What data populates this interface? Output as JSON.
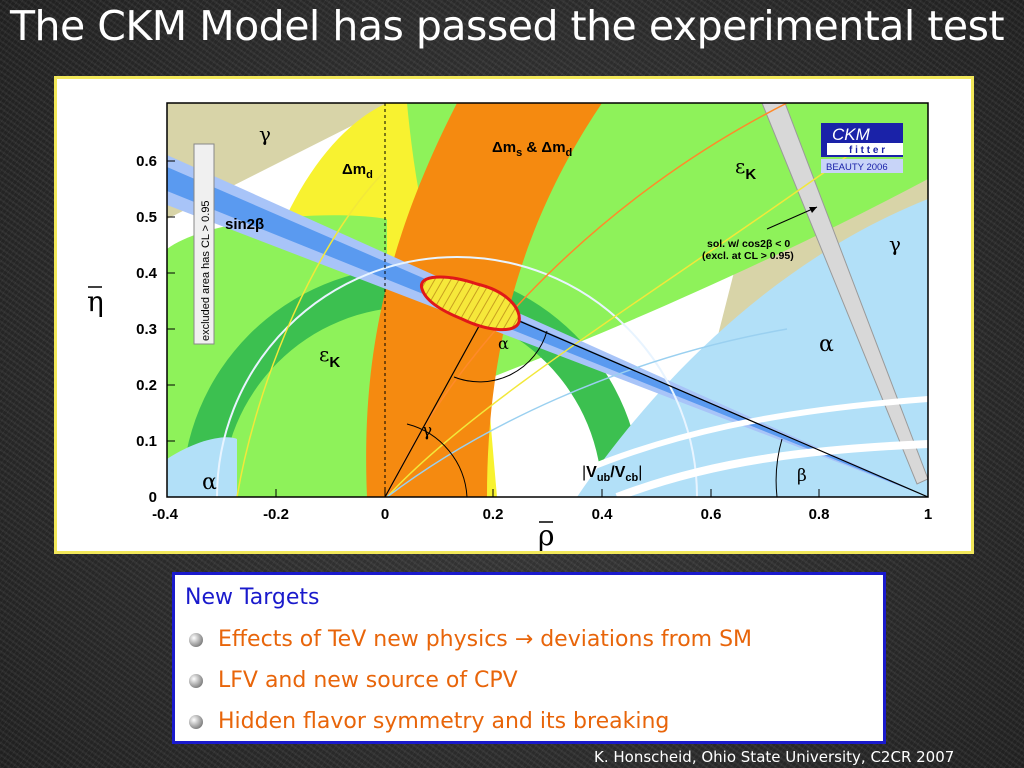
{
  "slide": {
    "title": "The CKM Model has passed the experimental test",
    "footer": "K. Honscheid, Ohio State University, C2CR 2007"
  },
  "figure": {
    "y_axis_symbol": "η",
    "x_axis_symbol": "ρ",
    "x_ticks": [
      "-0.4",
      "-0.2",
      "0",
      "0.2",
      "0.4",
      "0.6",
      "0.8",
      "1"
    ],
    "y_ticks": [
      "0",
      "0.1",
      "0.2",
      "0.3",
      "0.4",
      "0.5",
      "0.6"
    ],
    "logo": {
      "name": "CKM",
      "sub": "f i t t e r",
      "tag": "BEAUTY 2006"
    },
    "excluded_note": "excluded area has CL > 0.95",
    "solution_note_1": "sol. w/ cos2β < 0",
    "solution_note_2": "(excl. at CL > 0.95)",
    "labels": {
      "gamma": "γ",
      "alpha": "α",
      "beta": "β",
      "sin2beta": "sin2β",
      "epsilon": "ε",
      "epsilon_sub": "K",
      "delta_md": "Δm",
      "delta_md_sub": "d",
      "dms_a": "Δm",
      "dms_s": "s",
      "dms_amp": " & Δm",
      "dms_d": "d",
      "vub_v": "V",
      "vub_ub": "ub",
      "vub_slash": "/V",
      "vub_cb": "cb"
    },
    "colors": {
      "gamma_region": "#d8d4a8",
      "dmd_region": "#f8f230",
      "dms_region": "#f58a10",
      "epsk_light": "#8ef25a",
      "epsk_dark": "#3cc050",
      "alpha_region": "#b2e0f8",
      "sin2beta_band": "#5a9af0",
      "sin2beta_outer": "#a8c4f8",
      "fit_fill": "#f6e83a",
      "fit_edge": "#e01818",
      "frame_border": "#f2e85a"
    }
  },
  "targets": {
    "heading": "New Targets",
    "items": [
      "Effects of TeV new physics → deviations from SM",
      "LFV and new source of CPV",
      "Hidden flavor symmetry and its breaking"
    ]
  }
}
